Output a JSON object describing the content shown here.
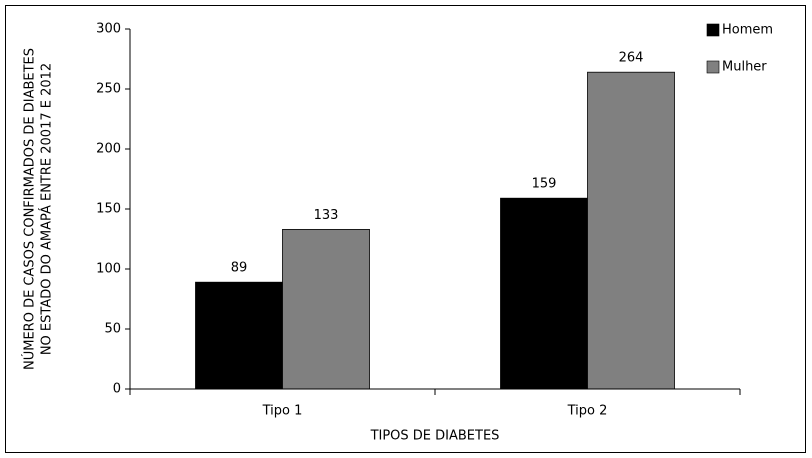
{
  "chart_data": {
    "type": "bar",
    "ylabel": [
      "NÚMERO DE CASOS CONFIRMADOS DE DIABETES",
      "NO ESTADO DO AMAPÁ ENTRE 20017 E 2012"
    ],
    "xlabel": "TIPOS DE DIABETES",
    "categories": [
      "Tipo 1",
      "Tipo 2"
    ],
    "series": [
      {
        "name": "Homem",
        "color": "#000000",
        "values": [
          89,
          159
        ]
      },
      {
        "name": "Mulher",
        "color": "#808080",
        "values": [
          133,
          264
        ]
      }
    ],
    "ylim": [
      0,
      300
    ],
    "yticks": [
      0,
      50,
      100,
      150,
      200,
      250,
      300
    ],
    "legend": "top-right"
  }
}
